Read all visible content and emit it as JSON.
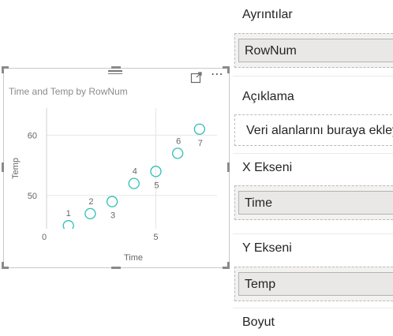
{
  "visual": {
    "title": "Time and Temp by RowNum"
  },
  "chart_data": {
    "type": "scatter",
    "title": "Time and Temp by RowNum",
    "xlabel": "Time",
    "ylabel": "Temp",
    "x_ticks": [
      "0",
      "5"
    ],
    "y_ticks": [
      "50",
      "60"
    ],
    "xlim": [
      0,
      7.8
    ],
    "ylim": [
      44.5,
      64.5
    ],
    "grid": true,
    "marker_color": "#2ebfb7",
    "points": [
      {
        "label": "1",
        "x": 1,
        "y": 45
      },
      {
        "label": "2",
        "x": 2,
        "y": 47
      },
      {
        "label": "3",
        "x": 3,
        "y": 49
      },
      {
        "label": "4",
        "x": 4,
        "y": 52
      },
      {
        "label": "5",
        "x": 5,
        "y": 54
      },
      {
        "label": "6",
        "x": 6,
        "y": 57
      },
      {
        "label": "7",
        "x": 7,
        "y": 61
      }
    ]
  },
  "wells": {
    "details": {
      "title": "Ayrıntılar",
      "field": "RowNum"
    },
    "legend": {
      "title": "Açıklama",
      "placeholder": "Veri alanlarını buraya ekleyin"
    },
    "x_axis": {
      "title": "X Ekseni",
      "field": "Time"
    },
    "y_axis": {
      "title": "Y Ekseni",
      "field": "Temp"
    },
    "size": {
      "title": "Boyut"
    }
  }
}
